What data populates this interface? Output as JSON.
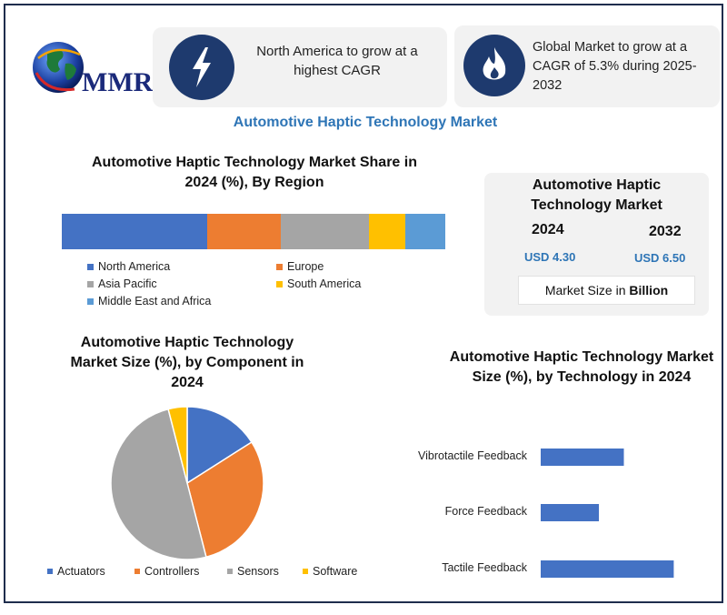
{
  "logo": {
    "text": "MMR"
  },
  "callouts": [
    {
      "text": "North America to grow at a highest CAGR",
      "icon": "lightning-icon"
    },
    {
      "text": "Global Market to grow at a CAGR of 5.3% during 2025-2032",
      "icon": "flame-icon"
    }
  ],
  "main_title": "Automotive Haptic Technology Market",
  "colors": {
    "blue": "#4472c4",
    "orange": "#ed7d31",
    "gray": "#a5a5a5",
    "yellow": "#ffc000",
    "lightblue": "#5b9bd5",
    "accent": "#2e75b6",
    "navy": "#1e3a6e"
  },
  "market_box": {
    "title": "Automotive Haptic Technology Market",
    "year1": "2024",
    "value1": "USD 4.30",
    "year2": "2032",
    "value2": "USD 6.50",
    "note_prefix": "Market Size in ",
    "note_bold": "Billion"
  },
  "chart_data": [
    {
      "type": "bar",
      "orientation": "stacked-horizontal",
      "title": "Automotive Haptic Technology Market Share in 2024 (%), By Region",
      "categories": [
        "North America",
        "Europe",
        "Asia Pacific",
        "South America",
        "Middle East and Africa"
      ],
      "values": [
        38,
        19,
        23,
        9.5,
        10.5
      ],
      "legend": "bottom"
    },
    {
      "type": "pie",
      "title": "Automotive Haptic Technology Market Size (%), by Component in 2024",
      "categories": [
        "Actuators",
        "Controllers",
        "Sensors",
        "Software"
      ],
      "values": [
        16,
        30,
        50,
        4
      ],
      "legend": "bottom"
    },
    {
      "type": "bar",
      "orientation": "horizontal",
      "title": "Automotive Haptic Technology Market Size (%), by Technology in 2024",
      "categories": [
        "Vibrotactile Feedback",
        "Force Feedback",
        "Tactile Feedback"
      ],
      "values": [
        30,
        21,
        48
      ]
    }
  ]
}
